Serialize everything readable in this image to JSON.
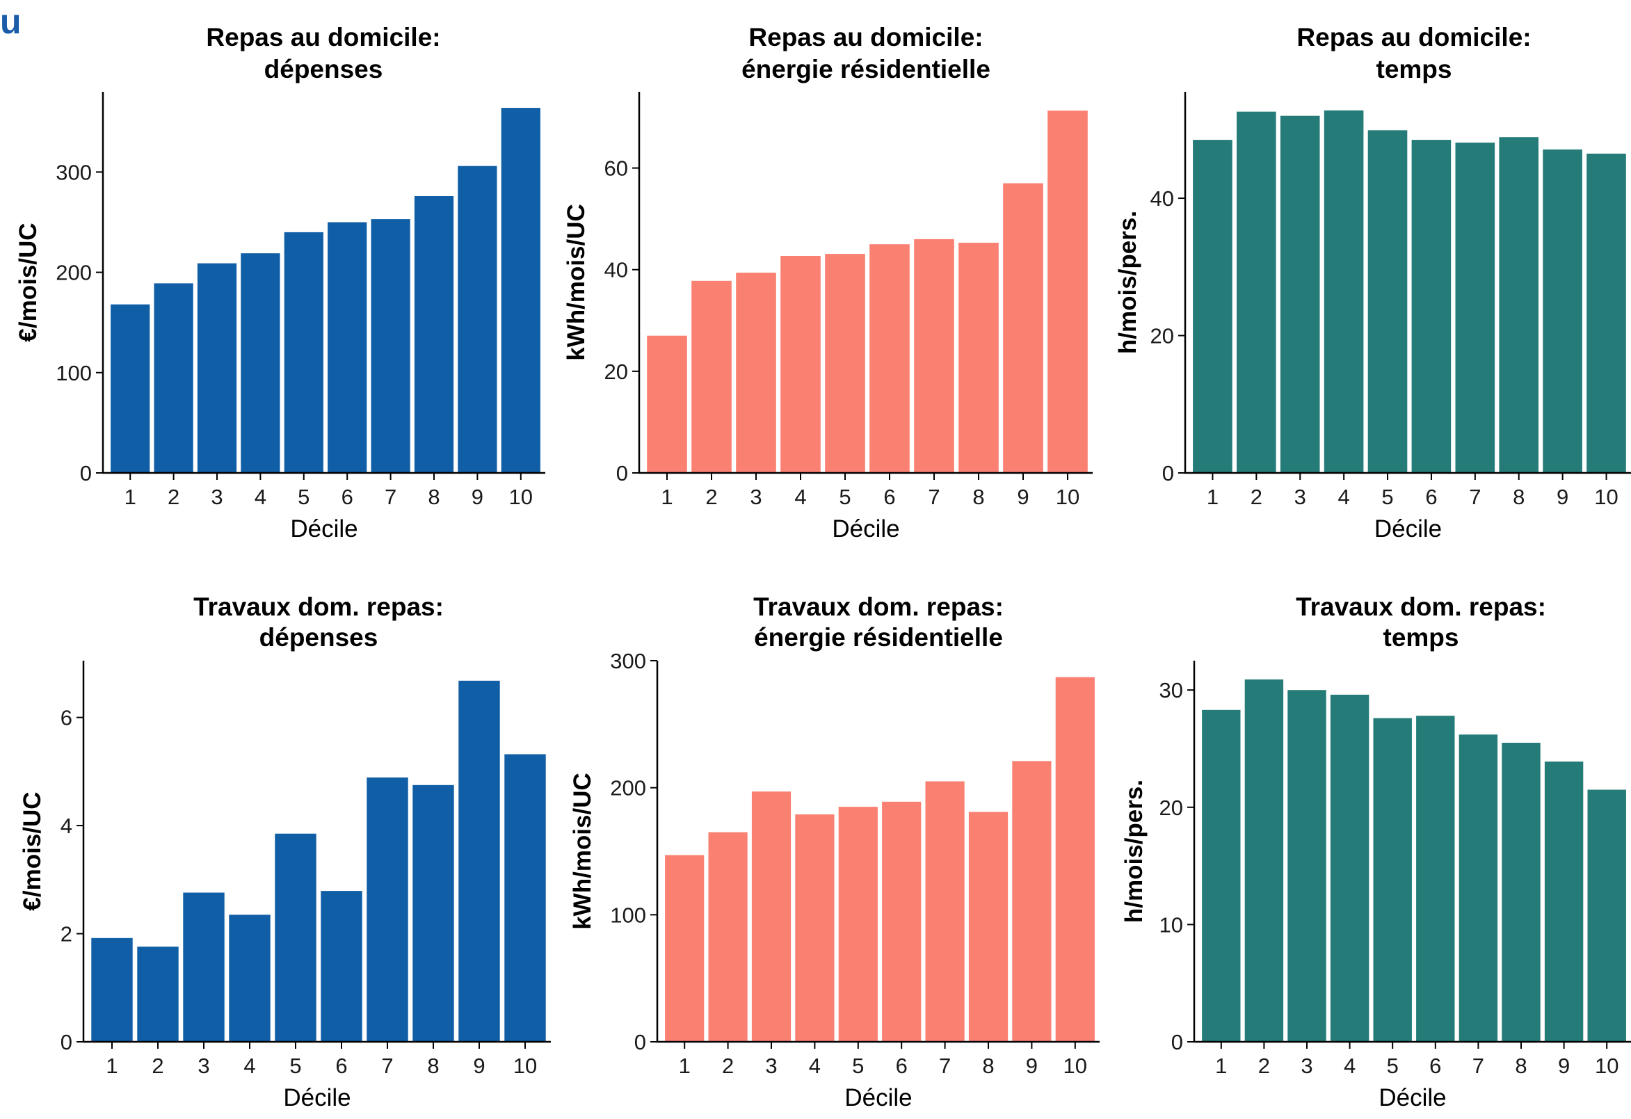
{
  "corner_mark": "u",
  "colors": {
    "blue": "#0f5ea6",
    "salmon": "#fa8072",
    "teal": "#247b78"
  },
  "chart_data": [
    {
      "type": "bar",
      "title": [
        "Repas au domicile:",
        "dépenses"
      ],
      "xlabel": "Décile",
      "ylabel": "€/mois/UC",
      "categories": [
        "1",
        "2",
        "3",
        "4",
        "5",
        "6",
        "7",
        "8",
        "9",
        "10"
      ],
      "values": [
        168,
        189,
        209,
        219,
        240,
        250,
        253,
        276,
        306,
        364
      ],
      "ylim": [
        0,
        380
      ],
      "yticks": [
        0,
        100,
        200,
        300
      ],
      "color": "#0f5ea6"
    },
    {
      "type": "bar",
      "title": [
        "Repas au domicile:",
        "énergie résidentielle"
      ],
      "xlabel": "Décile",
      "ylabel": "kWh/mois/UC",
      "categories": [
        "1",
        "2",
        "3",
        "4",
        "5",
        "6",
        "7",
        "8",
        "9",
        "10"
      ],
      "values": [
        27.0,
        37.8,
        39.4,
        42.7,
        43.1,
        45.0,
        46.0,
        45.3,
        57.0,
        71.3
      ],
      "ylim": [
        0,
        75
      ],
      "yticks": [
        0,
        20,
        40,
        60
      ],
      "color": "#fa8072"
    },
    {
      "type": "bar",
      "title": [
        "Repas au domicile:",
        "temps"
      ],
      "xlabel": "Décile",
      "ylabel": "h/mois/pers.",
      "categories": [
        "1",
        "2",
        "3",
        "4",
        "5",
        "6",
        "7",
        "8",
        "9",
        "10"
      ],
      "values": [
        48.5,
        52.6,
        52.0,
        52.8,
        49.9,
        48.5,
        48.1,
        48.9,
        47.1,
        46.5
      ],
      "ylim": [
        0,
        55.5
      ],
      "yticks": [
        0,
        20,
        40
      ],
      "color": "#247b78"
    },
    {
      "type": "bar",
      "title": [
        "Travaux dom. repas:",
        "dépenses"
      ],
      "xlabel": "Décile",
      "ylabel": "€/mois/UC",
      "categories": [
        "1",
        "2",
        "3",
        "4",
        "5",
        "6",
        "7",
        "8",
        "9",
        "10"
      ],
      "values": [
        1.92,
        1.76,
        2.76,
        2.35,
        3.85,
        2.79,
        4.89,
        4.75,
        6.68,
        5.32
      ],
      "ylim": [
        0,
        7.05
      ],
      "yticks": [
        0,
        2,
        4,
        6
      ],
      "color": "#0f5ea6"
    },
    {
      "type": "bar",
      "title": [
        "Travaux dom. repas:",
        "énergie résidentielle"
      ],
      "xlabel": "Décile",
      "ylabel": "kWh/mois/UC",
      "categories": [
        "1",
        "2",
        "3",
        "4",
        "5",
        "6",
        "7",
        "8",
        "9",
        "10"
      ],
      "values": [
        147,
        165,
        197,
        179,
        185,
        189,
        205,
        181,
        221,
        287
      ],
      "ylim": [
        0,
        300
      ],
      "yticks": [
        0,
        100,
        200,
        300
      ],
      "color": "#fa8072"
    },
    {
      "type": "bar",
      "title": [
        "Travaux dom. repas:",
        "temps"
      ],
      "xlabel": "Décile",
      "ylabel": "h/mois/pers.",
      "categories": [
        "1",
        "2",
        "3",
        "4",
        "5",
        "6",
        "7",
        "8",
        "9",
        "10"
      ],
      "values": [
        28.3,
        30.9,
        30.0,
        29.6,
        27.6,
        27.8,
        26.2,
        25.5,
        23.9,
        21.5
      ],
      "ylim": [
        0,
        32.5
      ],
      "yticks": [
        0,
        10,
        20,
        30
      ],
      "color": "#247b78"
    }
  ]
}
